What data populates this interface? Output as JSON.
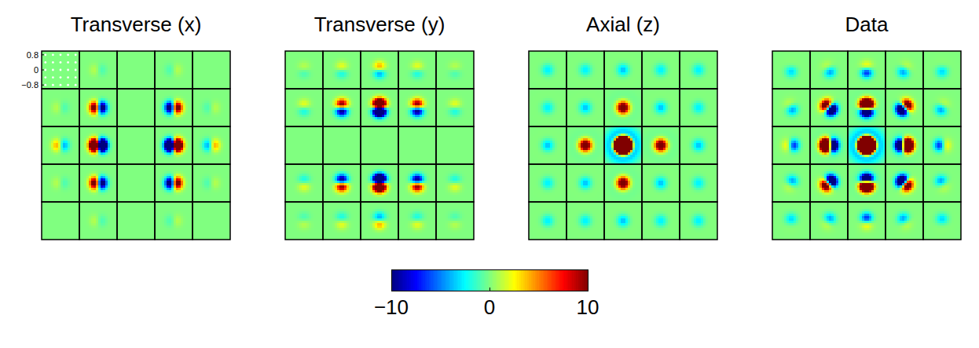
{
  "chart_data": {
    "type": "heatmap_grid",
    "panels": [
      {
        "title": "Transverse (x)",
        "type": "dipole_x",
        "cells": [
          [
            0,
            -1,
            0,
            1,
            0
          ],
          [
            -1,
            -12,
            0,
            12,
            1
          ],
          [
            -4,
            -25,
            0,
            25,
            4
          ],
          [
            -1,
            -12,
            0,
            12,
            1
          ],
          [
            0,
            -1,
            0,
            1,
            0
          ]
        ]
      },
      {
        "title": "Transverse (y)",
        "type": "dipole_y",
        "cells": [
          [
            1,
            2,
            4,
            2,
            1
          ],
          [
            2,
            10,
            25,
            10,
            2
          ],
          [
            0,
            0,
            0,
            0,
            0
          ],
          [
            -2,
            -10,
            -25,
            -10,
            -2
          ],
          [
            -1,
            -2,
            -4,
            -2,
            -1
          ]
        ]
      },
      {
        "title": "Axial (z)",
        "type": "spot",
        "cells": [
          [
            -3,
            -3,
            -4,
            -3,
            -3
          ],
          [
            -3,
            -4,
            15,
            -4,
            -3
          ],
          [
            -4,
            15,
            200,
            15,
            -4
          ],
          [
            -3,
            -4,
            15,
            -4,
            -3
          ],
          [
            -3,
            -3,
            -4,
            -3,
            -3
          ]
        ]
      },
      {
        "title": "Data",
        "type": "sum"
      }
    ],
    "xlim": [
      -1,
      1
    ],
    "ylim": [
      -1,
      1
    ],
    "yticks": [
      0.8,
      0,
      {
        "value": -0.8,
        "label": "−0.8"
      }
    ],
    "tick_labels": "y",
    "sample_points": [
      -0.8,
      -0.4,
      0,
      0.4,
      0.8
    ],
    "colorbar": {
      "range": [
        -10,
        10
      ],
      "ticks": [
        {
          "value": -10,
          "label": "−10"
        },
        0,
        10
      ]
    }
  }
}
